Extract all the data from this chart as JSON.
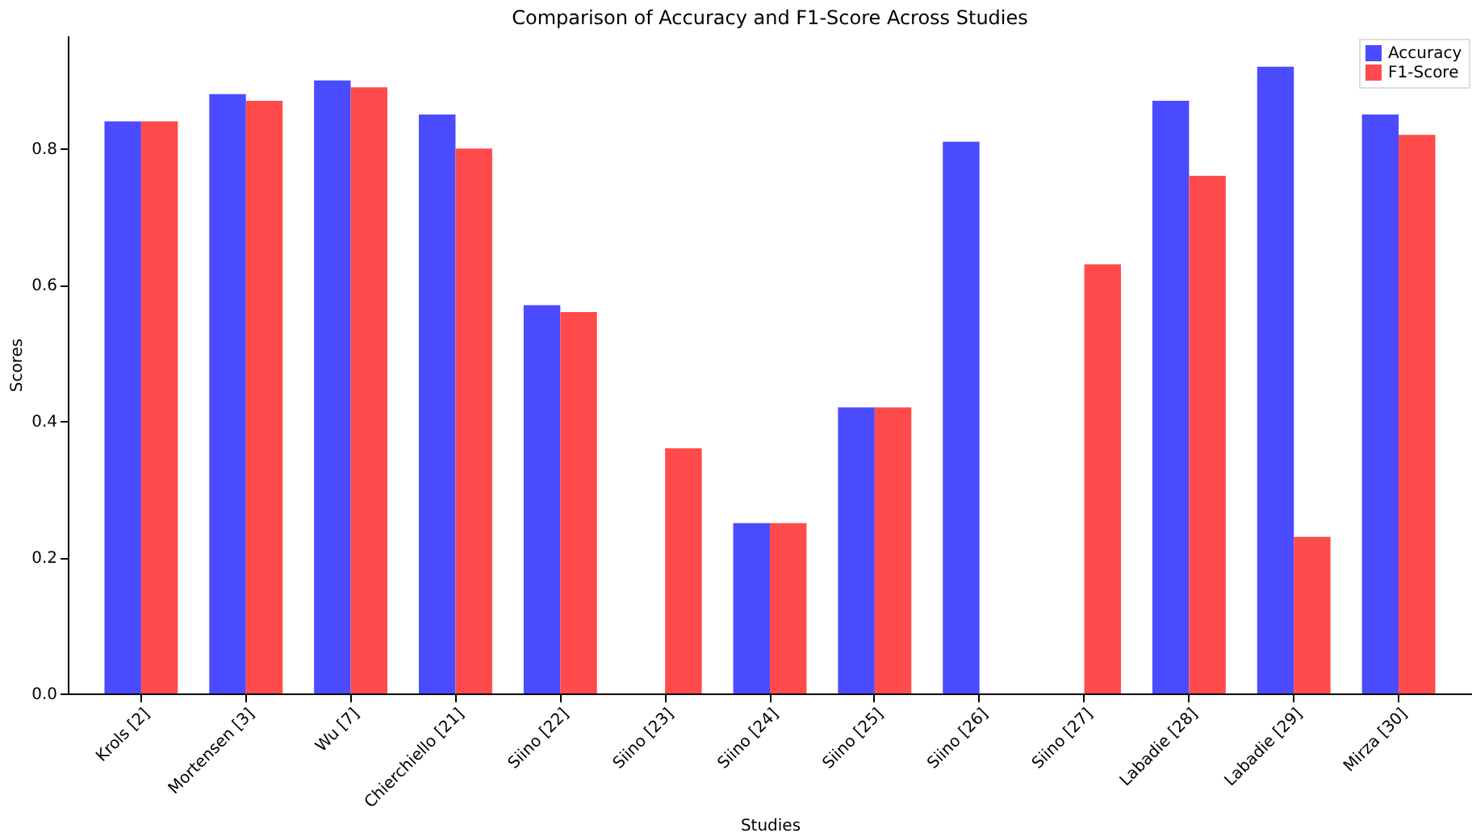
{
  "chart_data": {
    "type": "bar",
    "title": "Comparison of Accuracy and F1-Score Across Studies",
    "xlabel": "Studies",
    "ylabel": "Scores",
    "categories": [
      "Krols [2]",
      "Mortensen [3]",
      "Wu [7]",
      "Chierchiello [21]",
      "Siino [22]",
      "Siino [23]",
      "Siino [24]",
      "Siino [25]",
      "Siino [26]",
      "Siino [27]",
      "Labadie [28]",
      "Labadie [29]",
      "Mirza [30]"
    ],
    "series": [
      {
        "name": "Accuracy",
        "color": "#4b4bff",
        "values": [
          0.84,
          0.88,
          0.9,
          0.85,
          0.57,
          null,
          0.25,
          0.42,
          0.81,
          null,
          0.87,
          0.92,
          0.85
        ]
      },
      {
        "name": "F1-Score",
        "color": "#ff4b4b",
        "values": [
          0.84,
          0.87,
          0.89,
          0.8,
          0.56,
          0.36,
          0.25,
          0.42,
          null,
          0.63,
          0.76,
          0.23,
          0.82
        ]
      }
    ],
    "ylim": [
      0,
      0.966
    ],
    "yticks": [
      {
        "value": 0,
        "label": "0.0"
      },
      {
        "value": 0.2,
        "label": "0.2"
      },
      {
        "value": 0.4,
        "label": "0.4"
      },
      {
        "value": 0.6,
        "label": "0.6"
      },
      {
        "value": 0.8,
        "label": "0.8"
      }
    ],
    "legend": "top right",
    "grid": false
  }
}
